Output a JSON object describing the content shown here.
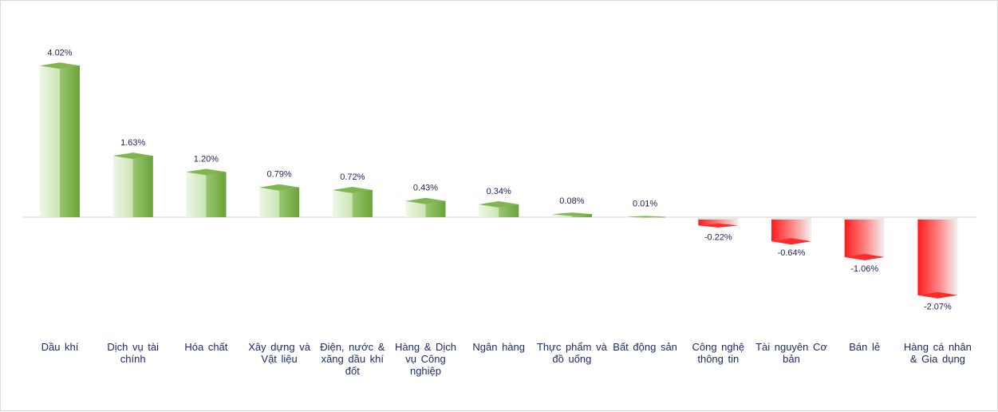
{
  "chart_data": {
    "type": "bar",
    "title": "",
    "xlabel": "",
    "ylabel": "",
    "ylim": [
      -2.07,
      4.02
    ],
    "grid": false,
    "legend": "none",
    "colors": {
      "positive": "#6aa33a",
      "positive_light": "#eef6e6",
      "negative": "#ff1a1a",
      "negative_light": "#f2f2f2"
    },
    "categories": [
      "Dầu khí",
      "Dịch vụ tài chính",
      "Hóa chất",
      "Xây dựng và Vật liệu",
      "Điện, nước & xăng dầu khí đốt",
      "Hàng & Dịch vụ Công nghiệp",
      "Ngân hàng",
      "Thực phẩm và đồ uống",
      "Bất động sản",
      "Công nghệ thông tin",
      "Tài nguyên Cơ bản",
      "Bán lẻ",
      "Hàng cá nhân & Gia dụng"
    ],
    "values": [
      4.02,
      1.63,
      1.2,
      0.79,
      0.72,
      0.43,
      0.34,
      0.08,
      0.01,
      -0.22,
      -0.64,
      -1.06,
      -2.07
    ],
    "data_labels": [
      "4.02%",
      "1.63%",
      "1.20%",
      "0.79%",
      "0.72%",
      "0.43%",
      "0.34%",
      "0.08%",
      "0.01%",
      "-0.22%",
      "-0.64%",
      "-1.06%",
      "-2.07%"
    ]
  }
}
